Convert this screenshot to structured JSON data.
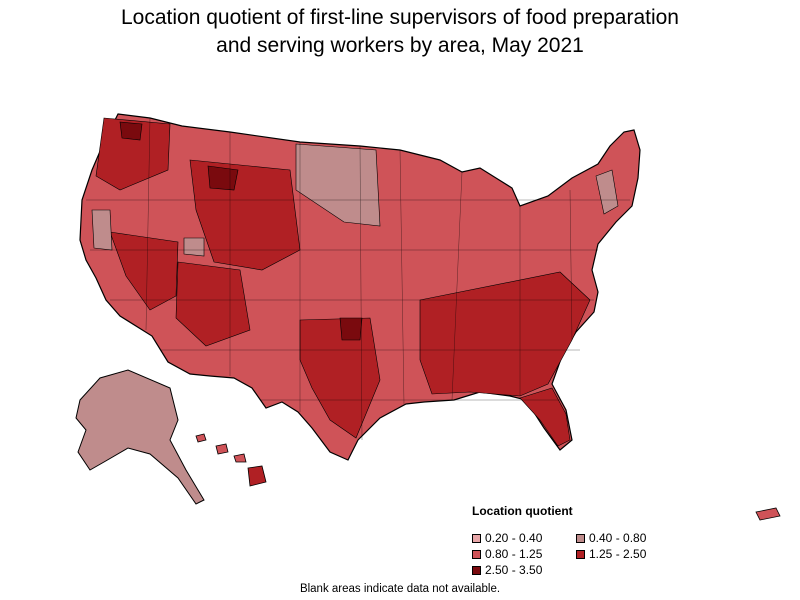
{
  "title_line1": "Location quotient of first-line supervisors of food preparation",
  "title_line2": "and serving workers by area, May 2021",
  "legend": {
    "title": "Location quotient",
    "items": [
      {
        "label": "0.20 - 0.40",
        "color": "#e8a6a8"
      },
      {
        "label": "0.40 - 0.80",
        "color": "#bf8c8c"
      },
      {
        "label": "0.80 - 1.25",
        "color": "#cf5358"
      },
      {
        "label": "1.25 - 2.50",
        "color": "#b02024"
      },
      {
        "label": "2.50 - 3.50",
        "color": "#7a0a0e"
      }
    ]
  },
  "footnote": "Blank areas indicate data not available.",
  "map_colors": {
    "base": "#cf5358",
    "high": "#b02024",
    "low": "#bf8c8c",
    "top": "#7a0a0e",
    "outline": "#000000"
  }
}
